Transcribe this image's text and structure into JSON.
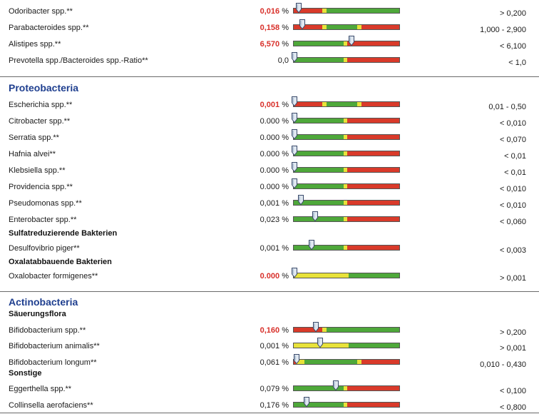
{
  "blocks": [
    {
      "kind": "row",
      "name": "Odoribacter spp.**",
      "value": "0,016",
      "unit": "%",
      "high": true,
      "ref": "> 0,200",
      "pos": 0.05,
      "pattern": "low_bad"
    },
    {
      "kind": "row",
      "name": "Parabacteroides spp.**",
      "value": "0,158",
      "unit": "%",
      "high": true,
      "ref": "1,000 - 2,900",
      "pos": 0.08,
      "pattern": "range"
    },
    {
      "kind": "row",
      "name": "Alistipes spp.**",
      "value": "6,570",
      "unit": "%",
      "high": true,
      "ref": "< 6,100",
      "pos": 0.55,
      "pattern": "high_bad"
    },
    {
      "kind": "row",
      "name": "Prevotella spp./Bacteroides spp.-Ratio**",
      "value": "0,0",
      "unit": "",
      "high": false,
      "ref": "< 1,0",
      "pos": 0.01,
      "pattern": "high_bad"
    },
    {
      "kind": "rule"
    },
    {
      "kind": "section",
      "label": "Proteobacteria"
    },
    {
      "kind": "row",
      "name": "Escherichia spp.**",
      "value": "0,001",
      "unit": "%",
      "high": true,
      "ref": "0,01 - 0,50",
      "pos": 0.01,
      "pattern": "range"
    },
    {
      "kind": "row",
      "name": "Citrobacter spp.**",
      "value": "0.000",
      "unit": "%",
      "high": false,
      "ref": "< 0,010",
      "pos": 0.01,
      "pattern": "high_bad"
    },
    {
      "kind": "row",
      "name": "Serratia spp.**",
      "value": "0.000",
      "unit": "%",
      "high": false,
      "ref": "< 0,070",
      "pos": 0.01,
      "pattern": "high_bad"
    },
    {
      "kind": "row",
      "name": "Hafnia alvei**",
      "value": "0.000",
      "unit": "%",
      "high": false,
      "ref": "< 0,01",
      "pos": 0.01,
      "pattern": "high_bad"
    },
    {
      "kind": "row",
      "name": "Klebsiella spp.**",
      "value": "0.000",
      "unit": "%",
      "high": false,
      "ref": "< 0,01",
      "pos": 0.01,
      "pattern": "high_bad"
    },
    {
      "kind": "row",
      "name": "Providencia spp.**",
      "value": "0.000",
      "unit": "%",
      "high": false,
      "ref": "< 0,010",
      "pos": 0.01,
      "pattern": "high_bad"
    },
    {
      "kind": "row",
      "name": "Pseudomonas spp.**",
      "value": "0,001",
      "unit": "%",
      "high": false,
      "ref": "< 0,010",
      "pos": 0.07,
      "pattern": "high_bad"
    },
    {
      "kind": "row",
      "name": "Enterobacter spp.**",
      "value": "0,023",
      "unit": "%",
      "high": false,
      "ref": "< 0,060",
      "pos": 0.2,
      "pattern": "high_bad"
    },
    {
      "kind": "sub",
      "label": "Sulfatreduzierende Bakterien"
    },
    {
      "kind": "row",
      "name": "Desulfovibrio piger**",
      "value": "0,001",
      "unit": "%",
      "high": false,
      "ref": "< 0,003",
      "pos": 0.17,
      "pattern": "high_bad"
    },
    {
      "kind": "sub",
      "label": "Oxalatabbauende Bakterien"
    },
    {
      "kind": "row",
      "name": "Oxalobacter formigenes**",
      "value": "0.000",
      "unit": "%",
      "high": true,
      "ref": "> 0,001",
      "pos": 0.01,
      "pattern": "yellow_green"
    },
    {
      "kind": "rule"
    },
    {
      "kind": "section",
      "label": "Actinobacteria"
    },
    {
      "kind": "sub",
      "label": "Säuerungsflora"
    },
    {
      "kind": "row",
      "name": "Bifidobacterium spp.**",
      "value": "0,160",
      "unit": "%",
      "high": true,
      "ref": "> 0,200",
      "pos": 0.21,
      "pattern": "low_bad"
    },
    {
      "kind": "row",
      "name": "Bifidobacterium animalis**",
      "value": "0,001",
      "unit": "%",
      "high": false,
      "ref": "> 0,001",
      "pos": 0.25,
      "pattern": "yellow_green"
    },
    {
      "kind": "row",
      "name": "Bifidobacterium longum**",
      "value": "0,061",
      "unit": "%",
      "high": false,
      "ref": "0,010 - 0,430",
      "pos": 0.03,
      "pattern": "range_red_start"
    },
    {
      "kind": "sub",
      "label": "Sonstige"
    },
    {
      "kind": "row",
      "name": "Eggerthella spp.**",
      "value": "0,079",
      "unit": "%",
      "high": false,
      "ref": "< 0,100",
      "pos": 0.4,
      "pattern": "high_bad"
    },
    {
      "kind": "row",
      "name": "Collinsella aerofaciens**",
      "value": "0,176",
      "unit": "%",
      "high": false,
      "ref": "< 0,800",
      "pos": 0.12,
      "pattern": "high_bad"
    },
    {
      "kind": "rule"
    }
  ],
  "colors": {
    "green": "#4ea83a",
    "yellow": "#e8e23a",
    "red": "#d93a2a",
    "section": "#1f3f8f",
    "high_value": "#d8302a",
    "marker_fill": "#dfe7f0",
    "marker_stroke": "#3a4a6a"
  }
}
